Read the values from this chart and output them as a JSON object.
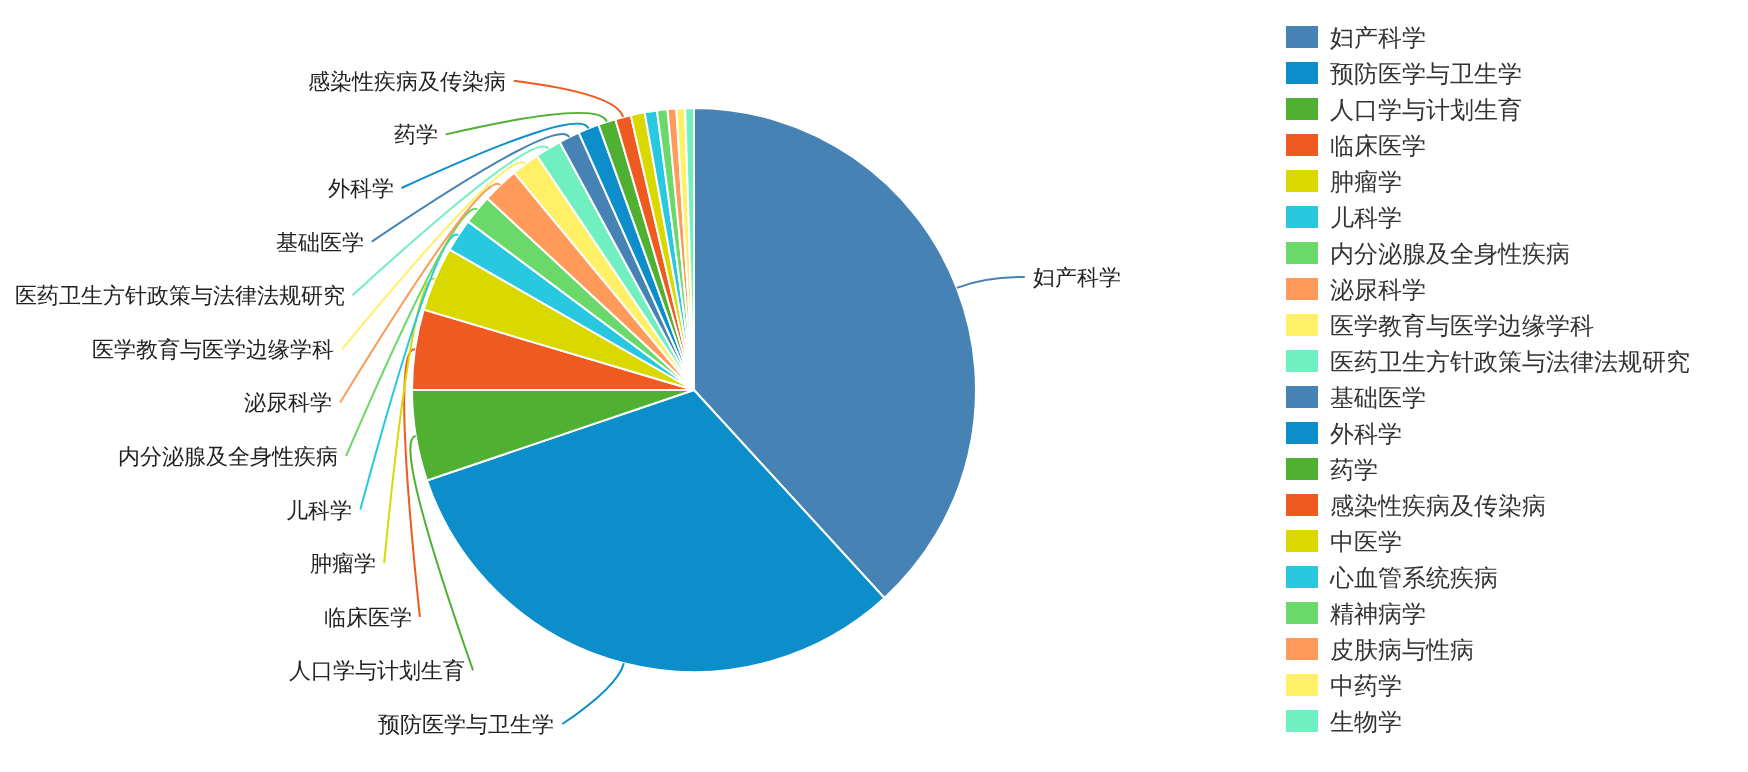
{
  "chart_data": {
    "type": "pie",
    "legend": "right",
    "categories": [
      "妇产科学",
      "预防医学与卫生学",
      "人口学与计划生育",
      "临床医学",
      "肿瘤学",
      "儿科学",
      "内分泌腺及全身性疾病",
      "泌尿科学",
      "医学教育与医学边缘学科",
      "医药卫生方针政策与法律法规研究",
      "基础医学",
      "外科学",
      "药学",
      "感染性疾病及传染病",
      "中医学",
      "心血管系统疾病",
      "精神病学",
      "皮肤病与性病",
      "中药学",
      "生物学"
    ],
    "values": [
      38.2,
      31.6,
      5.2,
      4.6,
      3.7,
      1.9,
      1.7,
      2.1,
      1.6,
      1.5,
      1.2,
      1.2,
      1.0,
      0.9,
      0.8,
      0.7,
      0.6,
      0.5,
      0.5,
      0.5
    ],
    "colors": [
      "#4682b4",
      "#0b8ec9",
      "#4fb032",
      "#ef5a20",
      "#d9d900",
      "#28c8e0",
      "#6ad96a",
      "#ff9a5a",
      "#fff066",
      "#70f0c0",
      "#4682b4",
      "#0b8ec9",
      "#4fb032",
      "#ef5a20",
      "#d9d900",
      "#28c8e0",
      "#6ad96a",
      "#ff9a5a",
      "#fff066",
      "#70f0c0"
    ],
    "value_labels": [
      "妇产科学",
      "预防医学与卫生学",
      "人口学与计划生育",
      "临床医学",
      "肿瘤学",
      "儿科学",
      "内分泌腺及全身性疾病",
      "泌尿科学",
      "医学教育与医学边缘学科",
      "医药卫生方针政策与法律法规研究",
      "基础医学",
      "外科学",
      "药学",
      "感染性疾病及传染病",
      null,
      null,
      null,
      null,
      null,
      null
    ]
  }
}
